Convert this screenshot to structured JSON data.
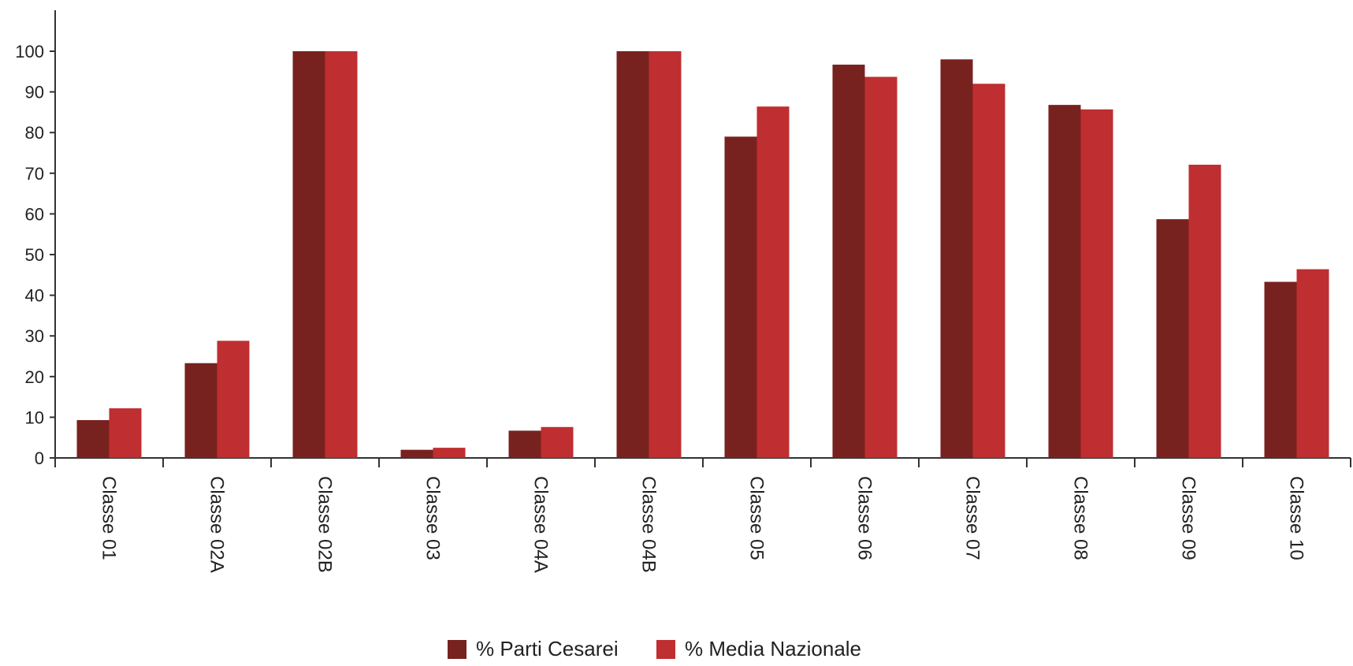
{
  "chart_data": {
    "type": "bar",
    "title": "",
    "xlabel": "",
    "ylabel": "",
    "ylim": [
      0,
      110
    ],
    "yticks": [
      0,
      10,
      20,
      30,
      40,
      50,
      60,
      70,
      80,
      90,
      100
    ],
    "grid": false,
    "legend_position": "bottom-center",
    "categories": [
      "Classe 01",
      "Classe 02A",
      "Classe 02B",
      "Classe 03",
      "Classe 04A",
      "Classe 04B",
      "Classe 05",
      "Classe 06",
      "Classe 07",
      "Classe 08",
      "Classe 09",
      "Classe 10"
    ],
    "series": [
      {
        "name": "% Parti Cesarei",
        "color": "#78221f",
        "values": [
          9.3,
          23.3,
          100,
          2.0,
          6.7,
          100,
          79.0,
          96.7,
          98.0,
          86.8,
          58.7,
          43.3
        ]
      },
      {
        "name": "% Media Nazionale",
        "color": "#bf2e30",
        "values": [
          12.2,
          28.8,
          100,
          2.5,
          7.6,
          100,
          86.4,
          93.7,
          92.0,
          85.7,
          72.1,
          46.4
        ]
      }
    ]
  }
}
